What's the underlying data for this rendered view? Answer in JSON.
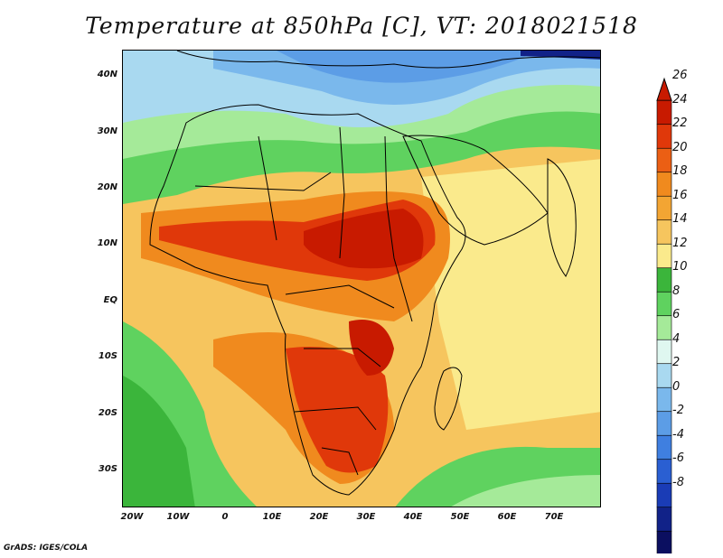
{
  "title": "Temperature at 850hPa [C], VT: 2018021518",
  "credit": "GrADS: IGES/COLA",
  "map": {
    "region": "Africa and Arabian Peninsula",
    "lon_range": [
      -22,
      80
    ],
    "lat_range": [
      -37,
      45
    ],
    "lat_ticks": [
      "40N",
      "30N",
      "20N",
      "10N",
      "EQ",
      "10S",
      "20S",
      "30S"
    ],
    "lon_ticks": [
      "20W",
      "10W",
      "0",
      "10E",
      "20E",
      "30E",
      "40E",
      "50E",
      "60E",
      "70E"
    ]
  },
  "colorbar": {
    "labels": [
      "26",
      "24",
      "22",
      "20",
      "18",
      "16",
      "14",
      "12",
      "10",
      "8",
      "6",
      "4",
      "2",
      "0",
      "-2",
      "-4",
      "-6",
      "-8"
    ],
    "colors": [
      "#c81a00",
      "#e0380a",
      "#eb5f14",
      "#f08a1e",
      "#f3a533",
      "#f6c55e",
      "#faea8c",
      "#3bb53b",
      "#5fd25f",
      "#a5ea99",
      "#dff7f0",
      "#a9d9f0",
      "#7ab8ec",
      "#5c9de6",
      "#3f7fe0",
      "#2a5fd2",
      "#1a3cb6",
      "#112288",
      "#0b0f60"
    ],
    "over_color": "#c81a00",
    "under_color": "#d8dcff"
  }
}
